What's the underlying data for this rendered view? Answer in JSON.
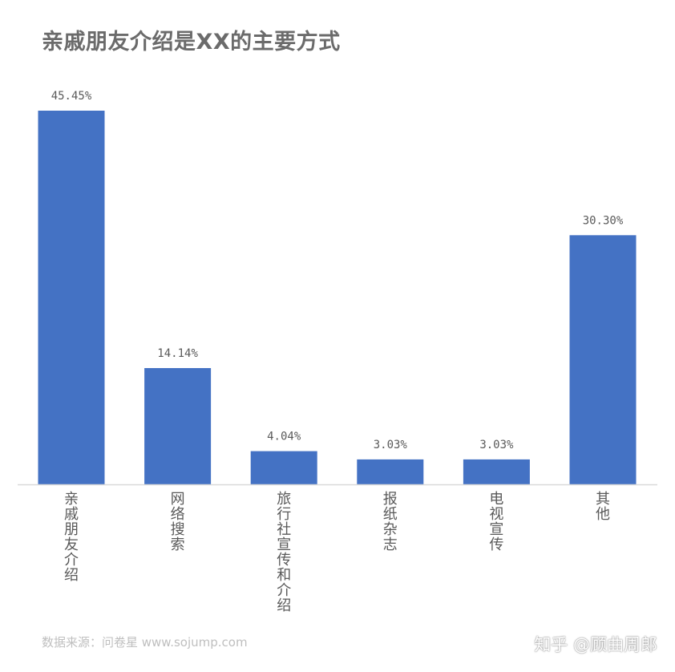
{
  "title": "亲戚朋友介绍是XX的主要方式",
  "source": "数据来源：问卷星 www.sojump.com",
  "watermark": "知乎 @顾曲周郎",
  "colors": {
    "bar": "#4472C4",
    "axis": "#d9d9d9",
    "label": "#595959"
  },
  "chart_data": {
    "type": "bar",
    "title": "亲戚朋友介绍是XX的主要方式",
    "categories": [
      "亲戚朋友介绍",
      "网络搜索",
      "旅行社宣传和介绍",
      "报纸杂志",
      "电视宣传",
      "其他"
    ],
    "values": [
      45.45,
      14.14,
      4.04,
      3.03,
      3.03,
      30.3
    ],
    "data_labels": [
      "45.45%",
      "14.14%",
      "4.04%",
      "3.03%",
      "3.03%",
      "30.30%"
    ],
    "unit": "%",
    "ylim": [
      0,
      45.45
    ],
    "grid": false,
    "legend": "none",
    "category_label_orientation": "vertical"
  }
}
